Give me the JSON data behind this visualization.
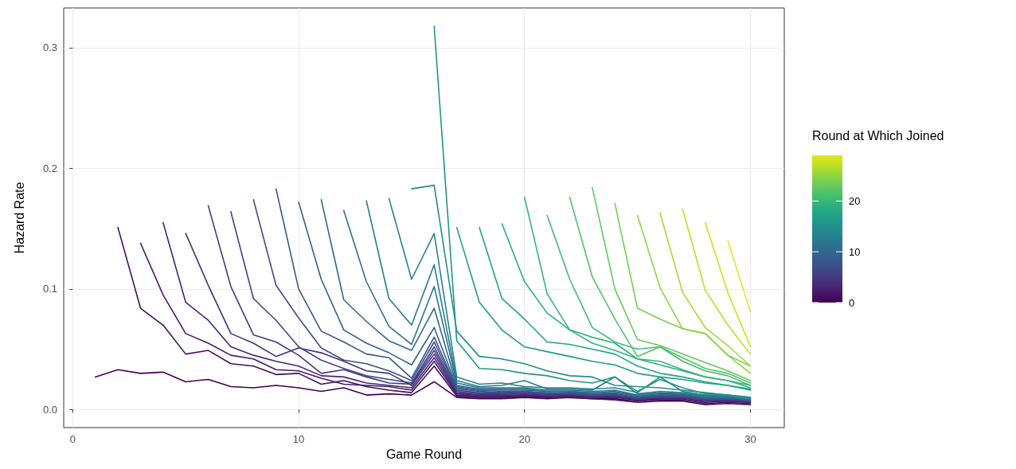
{
  "chart_data": {
    "type": "line",
    "xlabel": "Game Round",
    "ylabel": "Hazard Rate",
    "clabel": "Round at Which Joined",
    "xlim": [
      -0.4,
      31.5
    ],
    "ylim": [
      -0.015,
      0.333
    ],
    "xticks": [
      0,
      10,
      20,
      30
    ],
    "yticks": [
      {
        "value": 0,
        "label": "0.0"
      },
      0.1,
      0.2,
      0.3
    ],
    "clim": [
      0,
      29
    ],
    "cticks": [
      0,
      10,
      20
    ],
    "grid": true,
    "series": [
      {
        "color": "#440154",
        "x": [
          1,
          2,
          3,
          4,
          5,
          6,
          7,
          8,
          9,
          10,
          11,
          12,
          13,
          14,
          15,
          16,
          17,
          18,
          19,
          20,
          21,
          22,
          23,
          24,
          25,
          26,
          27,
          28,
          29,
          30
        ],
        "values": [
          0.027,
          0.033,
          0.03,
          0.031,
          0.023,
          0.025,
          0.019,
          0.018,
          0.02,
          0.018,
          0.015,
          0.018,
          0.012,
          0.013,
          0.012,
          0.023,
          0.01,
          0.009,
          0.009,
          0.01,
          0.009,
          0.01,
          0.009,
          0.008,
          0.006,
          0.007,
          0.007,
          0.004,
          0.005,
          0.004
        ]
      },
      {
        "color": "#450d5f",
        "x": [
          2,
          3,
          4,
          5,
          6,
          7,
          8,
          9,
          10,
          11,
          12,
          13,
          14,
          15,
          16,
          17,
          18,
          19,
          20,
          21,
          22,
          23,
          24,
          25,
          26,
          27,
          28,
          29,
          30
        ],
        "values": [
          0.151,
          0.084,
          0.07,
          0.046,
          0.049,
          0.038,
          0.036,
          0.029,
          0.03,
          0.021,
          0.024,
          0.019,
          0.016,
          0.014,
          0.036,
          0.011,
          0.01,
          0.01,
          0.011,
          0.01,
          0.01,
          0.009,
          0.009,
          0.007,
          0.008,
          0.008,
          0.005,
          0.006,
          0.005
        ]
      },
      {
        "color": "#47196b",
        "x": [
          3,
          4,
          5,
          6,
          7,
          8,
          9,
          10,
          11,
          12,
          13,
          14,
          15,
          16,
          17,
          18,
          19,
          20,
          21,
          22,
          23,
          24,
          25,
          26,
          27,
          28,
          29,
          30
        ],
        "values": [
          0.138,
          0.095,
          0.063,
          0.055,
          0.045,
          0.042,
          0.033,
          0.032,
          0.026,
          0.021,
          0.02,
          0.019,
          0.016,
          0.04,
          0.012,
          0.011,
          0.011,
          0.012,
          0.011,
          0.011,
          0.01,
          0.01,
          0.008,
          0.009,
          0.009,
          0.006,
          0.007,
          0.006
        ]
      },
      {
        "color": "#482576",
        "x": [
          4,
          5,
          6,
          7,
          8,
          9,
          10,
          11,
          12,
          13,
          14,
          15,
          16,
          17,
          18,
          19,
          20,
          21,
          22,
          23,
          24,
          25,
          26,
          27,
          28,
          29,
          30
        ],
        "values": [
          0.155,
          0.089,
          0.074,
          0.052,
          0.045,
          0.04,
          0.036,
          0.028,
          0.027,
          0.022,
          0.02,
          0.018,
          0.043,
          0.013,
          0.012,
          0.012,
          0.012,
          0.011,
          0.012,
          0.01,
          0.011,
          0.008,
          0.009,
          0.009,
          0.007,
          0.007,
          0.006
        ]
      },
      {
        "color": "#45307a",
        "x": [
          5,
          6,
          7,
          8,
          9,
          10,
          11,
          12,
          13,
          14,
          15,
          16,
          17,
          18,
          19,
          20,
          21,
          22,
          23,
          24,
          25,
          26,
          27,
          28,
          29,
          30
        ],
        "values": [
          0.146,
          0.103,
          0.063,
          0.055,
          0.044,
          0.051,
          0.047,
          0.04,
          0.032,
          0.03,
          0.02,
          0.046,
          0.014,
          0.012,
          0.013,
          0.013,
          0.012,
          0.012,
          0.011,
          0.011,
          0.009,
          0.01,
          0.01,
          0.007,
          0.008,
          0.006
        ]
      },
      {
        "color": "#433b82",
        "x": [
          6,
          7,
          8,
          9,
          10,
          11,
          12,
          13,
          14,
          15,
          16,
          17,
          18,
          19,
          20,
          21,
          22,
          23,
          24,
          25,
          26,
          27,
          28,
          29,
          30
        ],
        "values": [
          0.169,
          0.102,
          0.062,
          0.056,
          0.045,
          0.03,
          0.033,
          0.027,
          0.022,
          0.021,
          0.049,
          0.015,
          0.013,
          0.013,
          0.014,
          0.012,
          0.013,
          0.011,
          0.012,
          0.009,
          0.01,
          0.01,
          0.008,
          0.008,
          0.007
        ]
      },
      {
        "color": "#404688",
        "x": [
          7,
          8,
          9,
          10,
          11,
          12,
          13,
          14,
          15,
          16,
          17,
          18,
          19,
          20,
          21,
          22,
          23,
          24,
          25,
          26,
          27,
          28,
          29,
          30
        ],
        "values": [
          0.164,
          0.092,
          0.074,
          0.052,
          0.041,
          0.034,
          0.028,
          0.025,
          0.022,
          0.052,
          0.016,
          0.014,
          0.014,
          0.014,
          0.013,
          0.013,
          0.012,
          0.012,
          0.01,
          0.011,
          0.011,
          0.008,
          0.009,
          0.007
        ]
      },
      {
        "color": "#3c4f89",
        "x": [
          8,
          9,
          10,
          11,
          12,
          13,
          14,
          15,
          16,
          17,
          18,
          19,
          20,
          21,
          22,
          23,
          24,
          25,
          26,
          27,
          28,
          29,
          30
        ],
        "values": [
          0.174,
          0.103,
          0.076,
          0.051,
          0.041,
          0.038,
          0.032,
          0.024,
          0.056,
          0.017,
          0.015,
          0.014,
          0.015,
          0.013,
          0.014,
          0.012,
          0.013,
          0.01,
          0.011,
          0.011,
          0.009,
          0.009,
          0.007
        ]
      },
      {
        "color": "#38588c",
        "x": [
          9,
          10,
          11,
          12,
          13,
          14,
          15,
          16,
          17,
          18,
          19,
          20,
          21,
          22,
          23,
          24,
          25,
          26,
          27,
          28,
          29,
          30
        ],
        "values": [
          0.183,
          0.1,
          0.065,
          0.056,
          0.046,
          0.043,
          0.026,
          0.06,
          0.018,
          0.016,
          0.015,
          0.015,
          0.014,
          0.014,
          0.013,
          0.013,
          0.01,
          0.012,
          0.012,
          0.009,
          0.009,
          0.008
        ]
      },
      {
        "color": "#34618d",
        "x": [
          10,
          11,
          12,
          13,
          14,
          15,
          16,
          17,
          18,
          19,
          20,
          21,
          22,
          23,
          24,
          25,
          26,
          27,
          28,
          29,
          30
        ],
        "values": [
          0.172,
          0.108,
          0.066,
          0.055,
          0.047,
          0.037,
          0.068,
          0.019,
          0.016,
          0.016,
          0.016,
          0.015,
          0.015,
          0.013,
          0.014,
          0.011,
          0.012,
          0.012,
          0.01,
          0.01,
          0.008
        ]
      },
      {
        "color": "#306a8d",
        "x": [
          11,
          12,
          13,
          14,
          15,
          16,
          17,
          18,
          19,
          20,
          21,
          22,
          23,
          24,
          25,
          26,
          27,
          28,
          29,
          30
        ],
        "values": [
          0.174,
          0.091,
          0.073,
          0.057,
          0.049,
          0.084,
          0.02,
          0.017,
          0.017,
          0.017,
          0.015,
          0.015,
          0.014,
          0.015,
          0.011,
          0.013,
          0.013,
          0.01,
          0.01,
          0.008
        ]
      },
      {
        "color": "#2c738e",
        "x": [
          12,
          13,
          14,
          15,
          16,
          17,
          18,
          19,
          20,
          21,
          22,
          23,
          24,
          25,
          26,
          27,
          28,
          29,
          30
        ],
        "values": [
          0.165,
          0.106,
          0.069,
          0.054,
          0.102,
          0.022,
          0.018,
          0.018,
          0.018,
          0.016,
          0.016,
          0.015,
          0.016,
          0.012,
          0.014,
          0.013,
          0.011,
          0.011,
          0.009
        ]
      },
      {
        "color": "#297b8e",
        "x": [
          13,
          14,
          15,
          16,
          17,
          18,
          19,
          20,
          21,
          22,
          23,
          24,
          25,
          26,
          27,
          28,
          29,
          30
        ],
        "values": [
          0.173,
          0.092,
          0.07,
          0.12,
          0.024,
          0.019,
          0.02,
          0.024,
          0.017,
          0.017,
          0.016,
          0.027,
          0.013,
          0.015,
          0.014,
          0.011,
          0.011,
          0.009
        ]
      },
      {
        "color": "#26848d",
        "x": [
          14,
          15,
          16,
          17,
          18,
          19,
          20,
          21,
          22,
          23,
          24,
          25,
          26,
          27,
          28,
          29,
          30
        ],
        "values": [
          0.175,
          0.108,
          0.146,
          0.027,
          0.021,
          0.022,
          0.019,
          0.018,
          0.018,
          0.017,
          0.018,
          0.014,
          0.027,
          0.015,
          0.012,
          0.012,
          0.01
        ]
      },
      {
        "color": "#238d8c",
        "x": [
          15,
          16,
          17,
          18,
          19,
          20,
          21,
          22,
          23,
          24,
          25,
          26,
          27,
          28,
          29,
          30
        ],
        "values": [
          0.183,
          0.186,
          0.065,
          0.044,
          0.042,
          0.038,
          0.032,
          0.028,
          0.027,
          0.02,
          0.019,
          0.018,
          0.016,
          0.014,
          0.012,
          0.01
        ]
      },
      {
        "color": "#21958b",
        "x": [
          16,
          17,
          18,
          19,
          20,
          21,
          22,
          23,
          24,
          25,
          26,
          27,
          28,
          29,
          30
        ],
        "values": [
          0.318,
          0.057,
          0.034,
          0.033,
          0.03,
          0.028,
          0.024,
          0.022,
          0.027,
          0.015,
          0.025,
          0.018,
          0.013,
          0.012,
          0.009
        ]
      },
      {
        "color": "#219d88",
        "x": [
          17,
          18,
          19,
          20,
          21,
          22,
          23,
          24,
          25,
          26,
          27,
          28,
          29,
          30
        ],
        "values": [
          0.151,
          0.089,
          0.066,
          0.052,
          0.048,
          0.044,
          0.04,
          0.037,
          0.03,
          0.027,
          0.025,
          0.022,
          0.02,
          0.017
        ]
      },
      {
        "color": "#22a585",
        "x": [
          18,
          19,
          20,
          21,
          22,
          23,
          24,
          25,
          26,
          27,
          28,
          29,
          30
        ],
        "values": [
          0.151,
          0.092,
          0.075,
          0.056,
          0.054,
          0.05,
          0.046,
          0.036,
          0.03,
          0.027,
          0.023,
          0.02,
          0.016
        ]
      },
      {
        "color": "#29ad81",
        "x": [
          19,
          20,
          21,
          22,
          23,
          24,
          25,
          26,
          27,
          28,
          29,
          30
        ],
        "values": [
          0.154,
          0.106,
          0.08,
          0.066,
          0.06,
          0.055,
          0.042,
          0.037,
          0.032,
          0.027,
          0.024,
          0.02
        ]
      },
      {
        "color": "#35b579",
        "x": [
          20,
          21,
          22,
          23,
          24,
          25,
          26,
          27,
          28,
          29,
          30
        ],
        "values": [
          0.176,
          0.096,
          0.066,
          0.055,
          0.049,
          0.042,
          0.04,
          0.033,
          0.027,
          0.024,
          0.018
        ]
      },
      {
        "color": "#41bd72",
        "x": [
          21,
          22,
          23,
          24,
          25,
          26,
          27,
          28,
          29,
          30
        ],
        "values": [
          0.161,
          0.108,
          0.068,
          0.056,
          0.05,
          0.052,
          0.04,
          0.032,
          0.028,
          0.02
        ]
      },
      {
        "color": "#51c369",
        "x": [
          22,
          23,
          24,
          25,
          26,
          27,
          28,
          29,
          30
        ],
        "values": [
          0.176,
          0.11,
          0.075,
          0.044,
          0.052,
          0.043,
          0.034,
          0.03,
          0.022
        ]
      },
      {
        "color": "#64ca5e",
        "x": [
          23,
          24,
          25,
          26,
          27,
          28,
          29,
          30
        ],
        "values": [
          0.184,
          0.1,
          0.058,
          0.053,
          0.046,
          0.039,
          0.032,
          0.024
        ]
      },
      {
        "color": "#76d053",
        "x": [
          24,
          25,
          26,
          27,
          28,
          29,
          30
        ],
        "values": [
          0.171,
          0.084,
          0.075,
          0.067,
          0.063,
          0.045,
          0.036
        ]
      },
      {
        "color": "#8dd545",
        "x": [
          25,
          26,
          27,
          28,
          29,
          30
        ],
        "values": [
          0.161,
          0.101,
          0.067,
          0.063,
          0.045,
          0.03
        ]
      },
      {
        "color": "#a4da36",
        "x": [
          26,
          27,
          28,
          29,
          30
        ],
        "values": [
          0.163,
          0.097,
          0.068,
          0.053,
          0.036
        ]
      },
      {
        "color": "#bcdf27",
        "x": [
          27,
          28,
          29,
          30
        ],
        "values": [
          0.166,
          0.099,
          0.07,
          0.046
        ]
      },
      {
        "color": "#d0e11c",
        "x": [
          28,
          29,
          30
        ],
        "values": [
          0.155,
          0.097,
          0.052
        ]
      },
      {
        "color": "#e7e425",
        "x": [
          29,
          30
        ],
        "values": [
          0.14,
          0.081
        ]
      }
    ]
  }
}
